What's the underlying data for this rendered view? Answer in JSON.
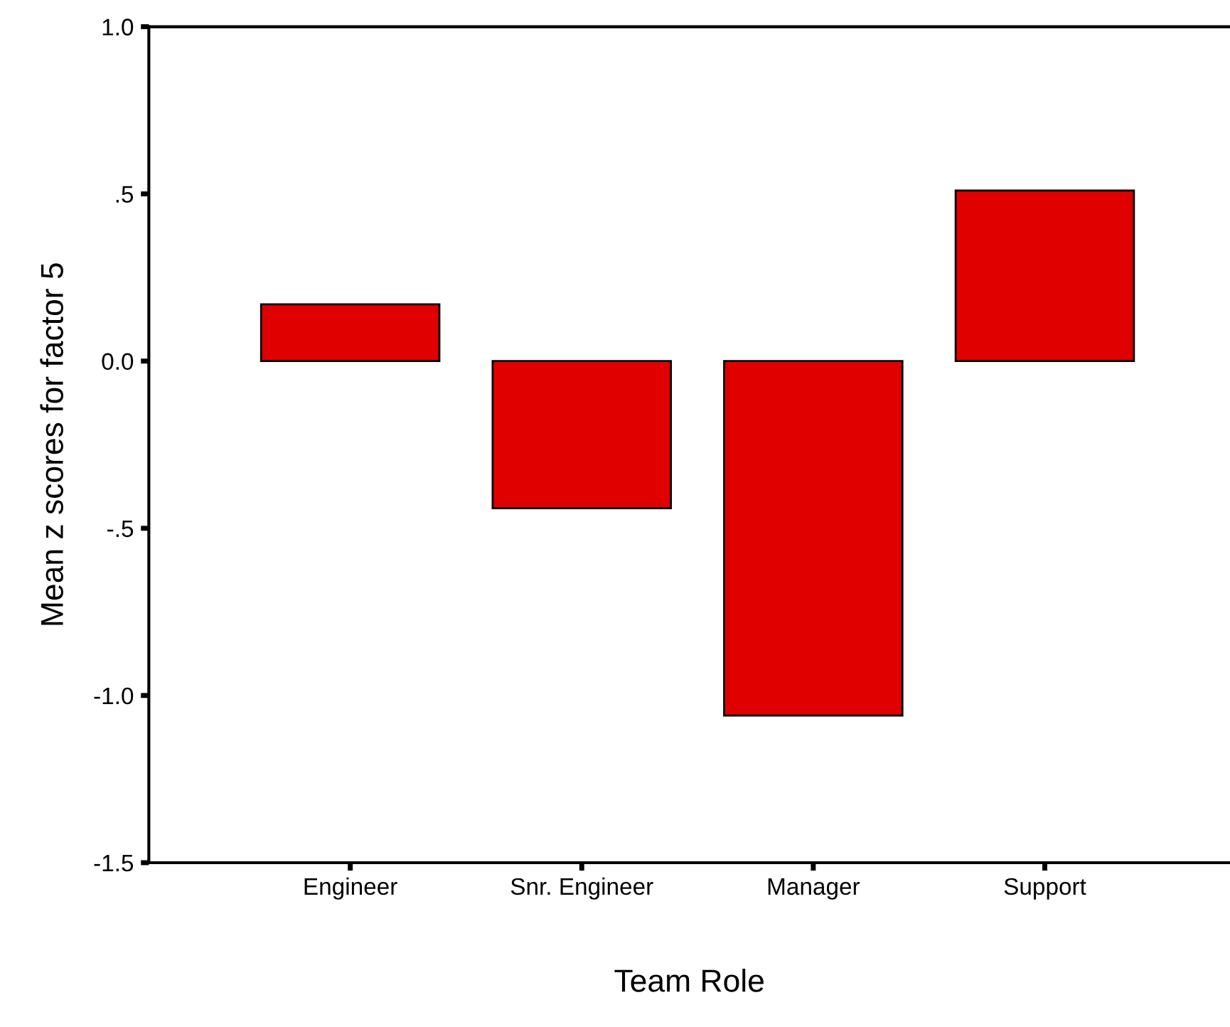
{
  "chart_data": {
    "type": "bar",
    "xlabel": "Team Role",
    "ylabel": "Mean z scores for factor 5",
    "categories": [
      "Engineer",
      "Snr. Engineer",
      "Manager",
      "Support"
    ],
    "values": [
      0.17,
      -0.44,
      -1.06,
      0.51
    ],
    "color": "#e00000",
    "ylim": [
      -1.5,
      1.0
    ],
    "yticks": [
      {
        "value": -1.5,
        "label": "-1.5"
      },
      {
        "value": -1.0,
        "label": "-1.0"
      },
      {
        "value": -0.5,
        "label": "-.5"
      },
      {
        "value": 0.0,
        "label": "0.0"
      },
      {
        "value": 0.5,
        "label": ".5"
      },
      {
        "value": 1.0,
        "label": "1.0"
      }
    ],
    "grid": false
  }
}
